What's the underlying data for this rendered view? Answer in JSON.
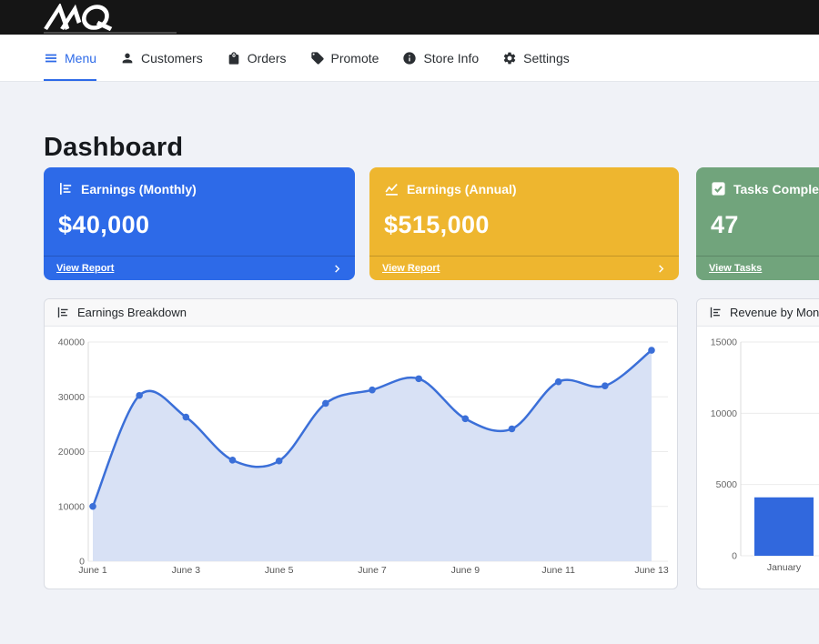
{
  "topbar": {
    "logo_text": "MQ"
  },
  "nav": {
    "items": [
      {
        "label": "Menu",
        "icon": "hamburger-icon",
        "active": true
      },
      {
        "label": "Customers",
        "icon": "person-icon",
        "active": false
      },
      {
        "label": "Orders",
        "icon": "bag-icon",
        "active": false
      },
      {
        "label": "Promote",
        "icon": "tag-icon",
        "active": false
      },
      {
        "label": "Store Info",
        "icon": "info-icon",
        "active": false
      },
      {
        "label": "Settings",
        "icon": "gear-icon",
        "active": false
      }
    ],
    "active_color": "#2d6ae8"
  },
  "page": {
    "title": "Dashboard"
  },
  "stat_cards": [
    {
      "title": "Earnings (Monthly)",
      "value": "$40,000",
      "link_label": "View Report",
      "color": "#2d6ae8",
      "icon": "bar-chart-icon"
    },
    {
      "title": "Earnings (Annual)",
      "value": "$515,000",
      "link_label": "View Report",
      "color": "#eeb62f",
      "icon": "line-chart-icon"
    },
    {
      "title": "Tasks Completed",
      "value": "47",
      "link_label": "View Tasks",
      "color": "#71a47c",
      "icon": "check-square-icon"
    }
  ],
  "chart_data": [
    {
      "type": "area",
      "title": "Earnings Breakdown",
      "x": [
        "June 1",
        "June 2",
        "June 3",
        "June 4",
        "June 5",
        "June 6",
        "June 7",
        "June 8",
        "June 9",
        "June 10",
        "June 11",
        "June 12",
        "June 13"
      ],
      "values": [
        10000,
        30250,
        26300,
        18450,
        18300,
        28800,
        31250,
        33300,
        26000,
        24150,
        32750,
        32000,
        38500
      ],
      "xlabel": "",
      "ylabel": "",
      "ylim": [
        0,
        40000
      ],
      "yticks": [
        0,
        10000,
        20000,
        30000,
        40000
      ],
      "xtick_step": 2,
      "grid": true,
      "legend": "none",
      "line_color": "#3b6fd8",
      "fill_color": "#d8e1f5",
      "point_color": "#3b6fd8"
    },
    {
      "type": "bar",
      "title": "Revenue by Month",
      "categories": [
        "January"
      ],
      "values": [
        4100
      ],
      "xlabel": "",
      "ylabel": "",
      "ylim": [
        0,
        15000
      ],
      "yticks": [
        0,
        5000,
        10000,
        15000
      ],
      "grid": true,
      "legend": "none",
      "bar_color": "#3168dd"
    }
  ]
}
